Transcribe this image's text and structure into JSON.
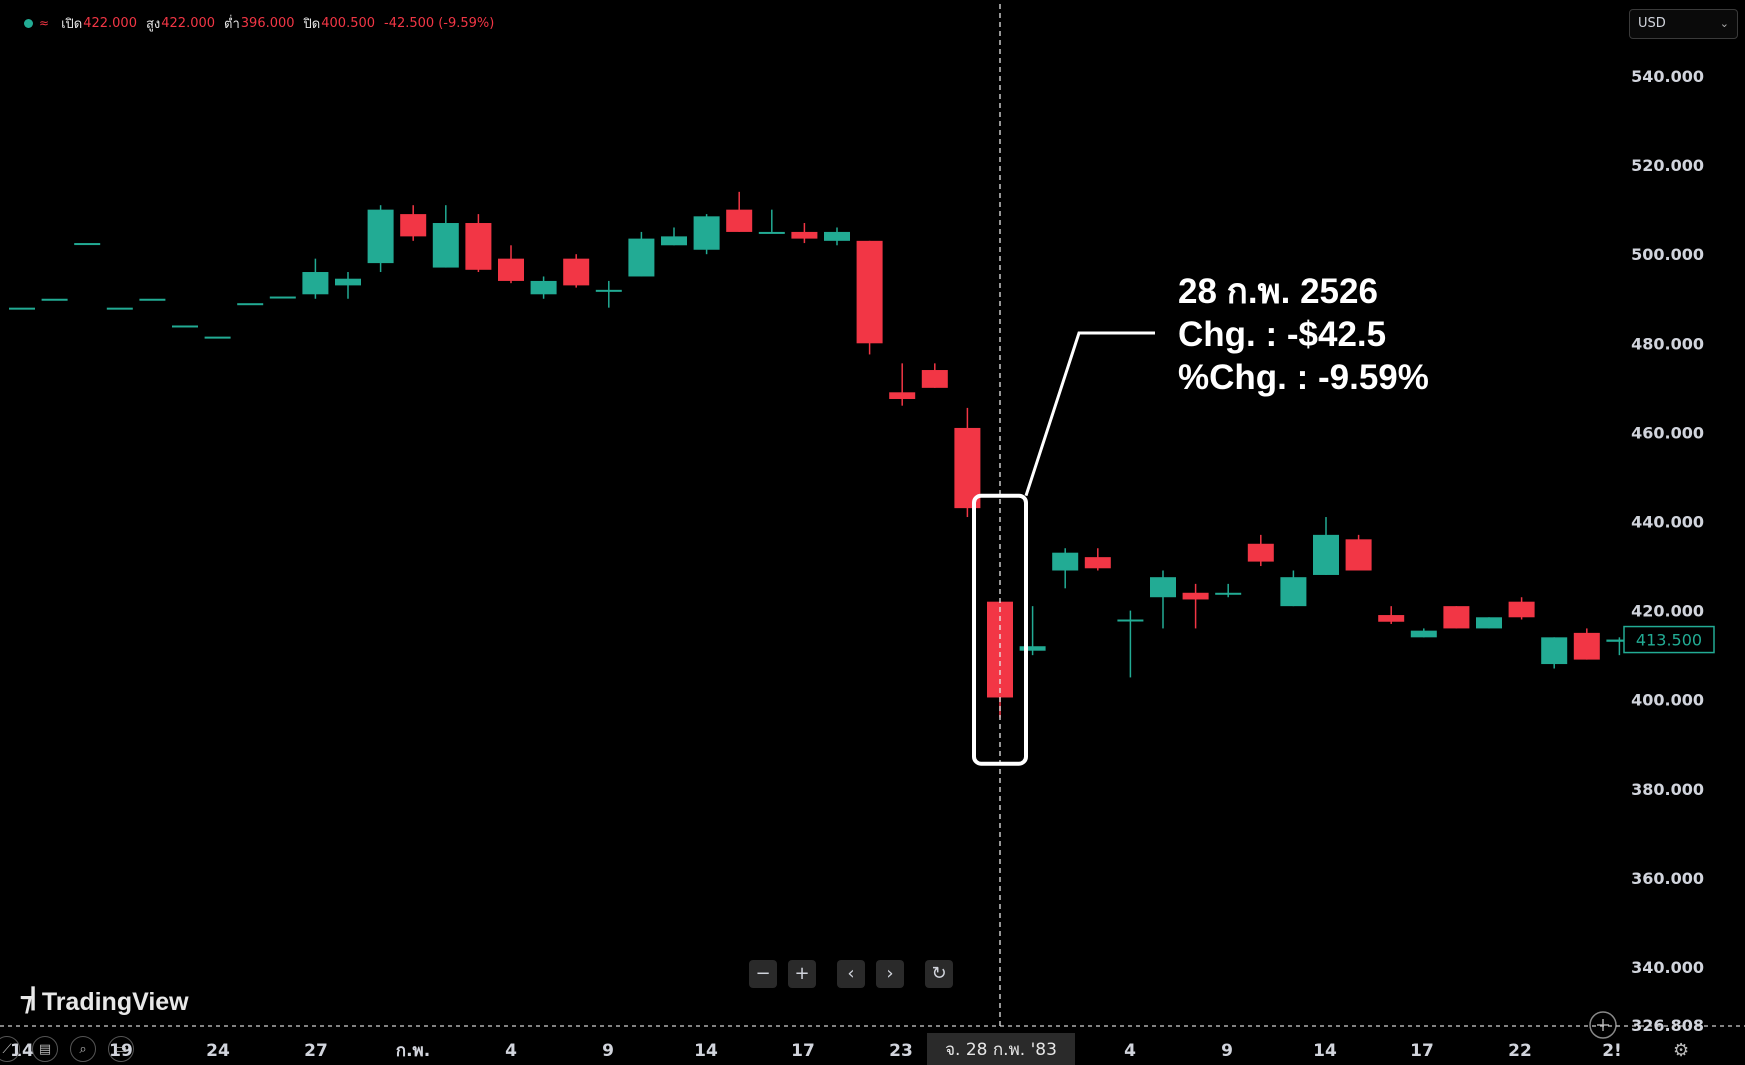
{
  "header": {
    "open_label": "เปิด",
    "open_value": "422.000",
    "high_label": "สูง",
    "high_value": "422.000",
    "low_label": "ต่ำ",
    "low_value": "396.000",
    "close_label": "ปิด",
    "close_value": "400.500",
    "change": "-42.500",
    "change_pct": "(-9.59%)"
  },
  "currency": {
    "label": "USD"
  },
  "annotation": {
    "line1": "28 ก.พ. 2526",
    "line2": "Chg. : -$42.5",
    "line3": "%Chg. : -9.59%"
  },
  "crosshair": {
    "date_label": "จ. 28 ก.พ. '83"
  },
  "last_price_label": "413.500",
  "logo": {
    "text": "TradingView"
  },
  "navigation": {
    "zoom_out": "−",
    "zoom_in": "+",
    "scroll_left": "‹",
    "scroll_right": "›",
    "reset": "↻"
  },
  "colors": {
    "up": "#22ab94",
    "down": "#f23645",
    "background": "#000000",
    "text": "#d1d4dc"
  },
  "chart_data": {
    "type": "candlestick",
    "ylim": [
      326.808,
      548
    ],
    "y_ticks": [
      "540.000",
      "520.000",
      "500.000",
      "480.000",
      "460.000",
      "440.000",
      "420.000",
      "400.000",
      "380.000",
      "360.000",
      "340.000"
    ],
    "y_bottom_label": "326.808",
    "x_ticks": [
      "14",
      "19",
      "24",
      "27",
      "ก.พ.",
      "4",
      "9",
      "14",
      "17",
      "23",
      "4",
      "9",
      "14",
      "17",
      "22",
      "2!"
    ],
    "highlighted_candle": 30,
    "candles": [
      {
        "o": 488,
        "h": 488,
        "l": 488,
        "c": 488
      },
      {
        "o": 490,
        "h": 490,
        "l": 490,
        "c": 490
      },
      {
        "o": 502.5,
        "h": 502.5,
        "l": 502.5,
        "c": 502.5
      },
      {
        "o": 488,
        "h": 488,
        "l": 488,
        "c": 488
      },
      {
        "o": 490,
        "h": 490,
        "l": 490,
        "c": 490
      },
      {
        "o": 484,
        "h": 484,
        "l": 484,
        "c": 484
      },
      {
        "o": 481.5,
        "h": 481.5,
        "l": 481.5,
        "c": 481.5
      },
      {
        "o": 489,
        "h": 489,
        "l": 489,
        "c": 489
      },
      {
        "o": 490.5,
        "h": 490.5,
        "l": 490.5,
        "c": 490.5
      },
      {
        "o": 491,
        "h": 499,
        "l": 490,
        "c": 496
      },
      {
        "o": 493,
        "h": 496,
        "l": 490,
        "c": 494.5
      },
      {
        "o": 498,
        "h": 511,
        "l": 496,
        "c": 510
      },
      {
        "o": 509,
        "h": 511,
        "l": 503,
        "c": 504
      },
      {
        "o": 497,
        "h": 511,
        "l": 497,
        "c": 507
      },
      {
        "o": 507,
        "h": 509,
        "l": 496,
        "c": 496.5
      },
      {
        "o": 499,
        "h": 502,
        "l": 493.5,
        "c": 494
      },
      {
        "o": 491,
        "h": 495,
        "l": 490,
        "c": 494
      },
      {
        "o": 499,
        "h": 500,
        "l": 492.5,
        "c": 493
      },
      {
        "o": 492,
        "h": 494,
        "l": 488,
        "c": 492
      },
      {
        "o": 495,
        "h": 505,
        "l": 495,
        "c": 503.5
      },
      {
        "o": 502,
        "h": 506,
        "l": 502,
        "c": 504
      },
      {
        "o": 501,
        "h": 509,
        "l": 500,
        "c": 508.5
      },
      {
        "o": 510,
        "h": 514,
        "l": 505,
        "c": 505
      },
      {
        "o": 505,
        "h": 510,
        "l": 505,
        "c": 505
      },
      {
        "o": 505,
        "h": 507,
        "l": 502.5,
        "c": 503.5
      },
      {
        "o": 503,
        "h": 506,
        "l": 502,
        "c": 505
      },
      {
        "o": 503,
        "h": 503,
        "l": 477.5,
        "c": 480
      },
      {
        "o": 469,
        "h": 475.5,
        "l": 466,
        "c": 467.5
      },
      {
        "o": 474,
        "h": 475.5,
        "l": 470,
        "c": 470
      },
      {
        "o": 461,
        "h": 465.5,
        "l": 441,
        "c": 443
      },
      {
        "o": 422,
        "h": 422,
        "l": 396,
        "c": 400.5
      },
      {
        "o": 411,
        "h": 421,
        "l": 410,
        "c": 412
      },
      {
        "o": 429,
        "h": 434,
        "l": 425,
        "c": 433
      },
      {
        "o": 432,
        "h": 434,
        "l": 429,
        "c": 429.5
      },
      {
        "o": 418,
        "h": 420,
        "l": 405,
        "c": 418
      },
      {
        "o": 423,
        "h": 429,
        "l": 416,
        "c": 427.5
      },
      {
        "o": 424,
        "h": 426,
        "l": 416,
        "c": 422.5
      },
      {
        "o": 424,
        "h": 426,
        "l": 423,
        "c": 424
      },
      {
        "o": 435,
        "h": 437,
        "l": 430,
        "c": 431
      },
      {
        "o": 421,
        "h": 429,
        "l": 421,
        "c": 427.5
      },
      {
        "o": 428,
        "h": 441,
        "l": 428,
        "c": 437
      },
      {
        "o": 436,
        "h": 437,
        "l": 429,
        "c": 429
      },
      {
        "o": 419,
        "h": 421,
        "l": 417,
        "c": 417.5
      },
      {
        "o": 414,
        "h": 416,
        "l": 414,
        "c": 415.5
      },
      {
        "o": 421,
        "h": 421,
        "l": 416,
        "c": 416
      },
      {
        "o": 416,
        "h": 418.5,
        "l": 416,
        "c": 418.5
      },
      {
        "o": 422,
        "h": 423,
        "l": 418,
        "c": 418.5
      },
      {
        "o": 408,
        "h": 414,
        "l": 407,
        "c": 414
      },
      {
        "o": 415,
        "h": 416,
        "l": 409,
        "c": 409
      },
      {
        "o": 413,
        "h": 414,
        "l": 410,
        "c": 413.5
      }
    ]
  }
}
